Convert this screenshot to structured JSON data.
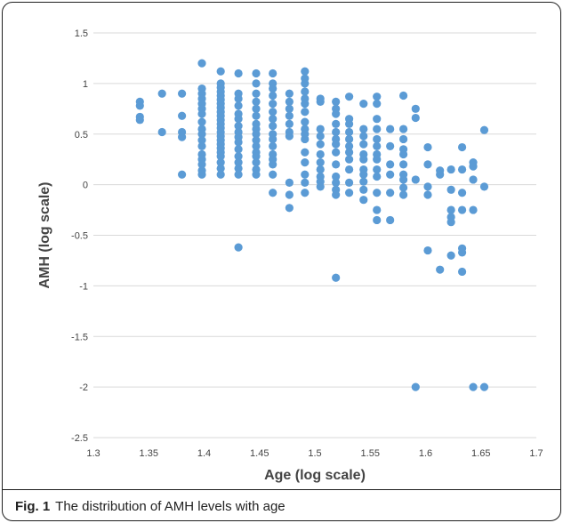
{
  "caption": {
    "label": "Fig. 1",
    "text": "The distribution of AMH levels with age"
  },
  "chart_data": {
    "type": "scatter",
    "title": "",
    "xlabel": "Age (log scale)",
    "ylabel": "AMH (log scale)",
    "xlim": [
      1.3,
      1.7
    ],
    "ylim": [
      -2.5,
      1.5
    ],
    "xticks": [
      "1.3",
      "1.35",
      "1.4",
      "1.45",
      "1.5",
      "1.55",
      "1.6",
      "1.65",
      "1.7"
    ],
    "yticks": [
      "1.5",
      "1",
      "0.5",
      "0",
      "-0.5",
      "-1",
      "-1.5",
      "-2",
      "-2.5"
    ],
    "grid": "horizontal",
    "marker_color": "#5b9bd5",
    "series": [
      {
        "points": [
          [
            1.342,
            0.82
          ],
          [
            1.342,
            0.78
          ],
          [
            1.342,
            0.67
          ],
          [
            1.342,
            0.64
          ],
          [
            1.362,
            0.9
          ],
          [
            1.362,
            0.52
          ],
          [
            1.38,
            0.9
          ],
          [
            1.38,
            0.68
          ],
          [
            1.38,
            0.52
          ],
          [
            1.38,
            0.47
          ],
          [
            1.38,
            0.1
          ],
          [
            1.398,
            1.2
          ],
          [
            1.398,
            0.95
          ],
          [
            1.398,
            0.9
          ],
          [
            1.398,
            0.85
          ],
          [
            1.398,
            0.8
          ],
          [
            1.398,
            0.75
          ],
          [
            1.398,
            0.7
          ],
          [
            1.398,
            0.62
          ],
          [
            1.398,
            0.55
          ],
          [
            1.398,
            0.5
          ],
          [
            1.398,
            0.44
          ],
          [
            1.398,
            0.38
          ],
          [
            1.398,
            0.3
          ],
          [
            1.398,
            0.25
          ],
          [
            1.398,
            0.2
          ],
          [
            1.398,
            0.14
          ],
          [
            1.398,
            0.1
          ],
          [
            1.415,
            1.12
          ],
          [
            1.415,
            1.0
          ],
          [
            1.415,
            0.96
          ],
          [
            1.415,
            0.92
          ],
          [
            1.415,
            0.88
          ],
          [
            1.415,
            0.84
          ],
          [
            1.415,
            0.8
          ],
          [
            1.415,
            0.76
          ],
          [
            1.415,
            0.72
          ],
          [
            1.415,
            0.68
          ],
          [
            1.415,
            0.64
          ],
          [
            1.415,
            0.6
          ],
          [
            1.415,
            0.56
          ],
          [
            1.415,
            0.52
          ],
          [
            1.415,
            0.48
          ],
          [
            1.415,
            0.44
          ],
          [
            1.415,
            0.4
          ],
          [
            1.415,
            0.36
          ],
          [
            1.415,
            0.32
          ],
          [
            1.415,
            0.28
          ],
          [
            1.415,
            0.22
          ],
          [
            1.415,
            0.16
          ],
          [
            1.415,
            0.1
          ],
          [
            1.431,
            1.1
          ],
          [
            1.431,
            0.9
          ],
          [
            1.431,
            0.85
          ],
          [
            1.431,
            0.78
          ],
          [
            1.431,
            0.7
          ],
          [
            1.431,
            0.65
          ],
          [
            1.431,
            0.58
          ],
          [
            1.431,
            0.52
          ],
          [
            1.431,
            0.47
          ],
          [
            1.431,
            0.42
          ],
          [
            1.431,
            0.35
          ],
          [
            1.431,
            0.28
          ],
          [
            1.431,
            0.22
          ],
          [
            1.431,
            0.16
          ],
          [
            1.431,
            0.1
          ],
          [
            1.431,
            -0.62
          ],
          [
            1.447,
            1.1
          ],
          [
            1.447,
            1.0
          ],
          [
            1.447,
            0.9
          ],
          [
            1.447,
            0.82
          ],
          [
            1.447,
            0.75
          ],
          [
            1.447,
            0.68
          ],
          [
            1.447,
            0.6
          ],
          [
            1.447,
            0.55
          ],
          [
            1.447,
            0.5
          ],
          [
            1.447,
            0.44
          ],
          [
            1.447,
            0.38
          ],
          [
            1.447,
            0.32
          ],
          [
            1.447,
            0.28
          ],
          [
            1.447,
            0.22
          ],
          [
            1.447,
            0.15
          ],
          [
            1.447,
            0.1
          ],
          [
            1.462,
            1.1
          ],
          [
            1.462,
            1.0
          ],
          [
            1.462,
            0.95
          ],
          [
            1.462,
            0.88
          ],
          [
            1.462,
            0.8
          ],
          [
            1.462,
            0.72
          ],
          [
            1.462,
            0.65
          ],
          [
            1.462,
            0.58
          ],
          [
            1.462,
            0.5
          ],
          [
            1.462,
            0.45
          ],
          [
            1.462,
            0.38
          ],
          [
            1.462,
            0.3
          ],
          [
            1.462,
            0.25
          ],
          [
            1.462,
            0.2
          ],
          [
            1.462,
            0.1
          ],
          [
            1.462,
            -0.08
          ],
          [
            1.477,
            0.9
          ],
          [
            1.477,
            0.82
          ],
          [
            1.477,
            0.75
          ],
          [
            1.477,
            0.68
          ],
          [
            1.477,
            0.6
          ],
          [
            1.477,
            0.52
          ],
          [
            1.477,
            0.48
          ],
          [
            1.477,
            0.02
          ],
          [
            1.477,
            -0.1
          ],
          [
            1.477,
            -0.23
          ],
          [
            1.491,
            1.12
          ],
          [
            1.491,
            1.05
          ],
          [
            1.491,
            1.0
          ],
          [
            1.491,
            0.92
          ],
          [
            1.491,
            0.85
          ],
          [
            1.491,
            0.8
          ],
          [
            1.491,
            0.72
          ],
          [
            1.491,
            0.62
          ],
          [
            1.491,
            0.55
          ],
          [
            1.491,
            0.5
          ],
          [
            1.491,
            0.45
          ],
          [
            1.491,
            0.32
          ],
          [
            1.491,
            0.22
          ],
          [
            1.491,
            0.1
          ],
          [
            1.491,
            0.02
          ],
          [
            1.491,
            -0.08
          ],
          [
            1.505,
            0.85
          ],
          [
            1.505,
            0.82
          ],
          [
            1.505,
            0.55
          ],
          [
            1.505,
            0.48
          ],
          [
            1.505,
            0.4
          ],
          [
            1.505,
            0.3
          ],
          [
            1.505,
            0.22
          ],
          [
            1.505,
            0.15
          ],
          [
            1.505,
            0.08
          ],
          [
            1.505,
            0.03
          ],
          [
            1.505,
            -0.02
          ],
          [
            1.519,
            0.82
          ],
          [
            1.519,
            0.75
          ],
          [
            1.519,
            0.7
          ],
          [
            1.519,
            0.6
          ],
          [
            1.519,
            0.52
          ],
          [
            1.519,
            0.45
          ],
          [
            1.519,
            0.4
          ],
          [
            1.519,
            0.32
          ],
          [
            1.519,
            0.2
          ],
          [
            1.519,
            0.08
          ],
          [
            1.519,
            0.02
          ],
          [
            1.519,
            -0.05
          ],
          [
            1.519,
            -0.1
          ],
          [
            1.519,
            -0.92
          ],
          [
            1.531,
            0.87
          ],
          [
            1.531,
            0.65
          ],
          [
            1.531,
            0.6
          ],
          [
            1.531,
            0.52
          ],
          [
            1.531,
            0.45
          ],
          [
            1.531,
            0.38
          ],
          [
            1.531,
            0.32
          ],
          [
            1.531,
            0.25
          ],
          [
            1.531,
            0.15
          ],
          [
            1.531,
            0.02
          ],
          [
            1.531,
            -0.08
          ],
          [
            1.544,
            0.8
          ],
          [
            1.544,
            0.55
          ],
          [
            1.544,
            0.48
          ],
          [
            1.544,
            0.4
          ],
          [
            1.544,
            0.3
          ],
          [
            1.544,
            0.25
          ],
          [
            1.544,
            0.15
          ],
          [
            1.544,
            0.1
          ],
          [
            1.544,
            0.03
          ],
          [
            1.544,
            -0.05
          ],
          [
            1.544,
            -0.15
          ],
          [
            1.556,
            0.87
          ],
          [
            1.556,
            0.8
          ],
          [
            1.556,
            0.65
          ],
          [
            1.556,
            0.55
          ],
          [
            1.556,
            0.45
          ],
          [
            1.556,
            0.38
          ],
          [
            1.556,
            0.3
          ],
          [
            1.556,
            0.25
          ],
          [
            1.556,
            0.15
          ],
          [
            1.556,
            0.08
          ],
          [
            1.556,
            -0.08
          ],
          [
            1.556,
            -0.25
          ],
          [
            1.556,
            -0.35
          ],
          [
            1.568,
            0.55
          ],
          [
            1.568,
            0.38
          ],
          [
            1.568,
            0.2
          ],
          [
            1.568,
            0.1
          ],
          [
            1.568,
            -0.08
          ],
          [
            1.568,
            -0.35
          ],
          [
            1.58,
            0.88
          ],
          [
            1.58,
            0.55
          ],
          [
            1.58,
            0.45
          ],
          [
            1.58,
            0.35
          ],
          [
            1.58,
            0.3
          ],
          [
            1.58,
            0.2
          ],
          [
            1.58,
            0.1
          ],
          [
            1.58,
            0.05
          ],
          [
            1.58,
            -0.03
          ],
          [
            1.58,
            -0.1
          ],
          [
            1.591,
            0.75
          ],
          [
            1.591,
            0.66
          ],
          [
            1.591,
            0.05
          ],
          [
            1.591,
            -2.0
          ],
          [
            1.602,
            0.37
          ],
          [
            1.602,
            0.2
          ],
          [
            1.602,
            -0.02
          ],
          [
            1.602,
            -0.1
          ],
          [
            1.602,
            -0.65
          ],
          [
            1.613,
            0.14
          ],
          [
            1.613,
            0.1
          ],
          [
            1.613,
            -0.84
          ],
          [
            1.623,
            0.15
          ],
          [
            1.623,
            -0.05
          ],
          [
            1.623,
            -0.25
          ],
          [
            1.623,
            -0.32
          ],
          [
            1.623,
            -0.37
          ],
          [
            1.623,
            -0.7
          ],
          [
            1.633,
            0.37
          ],
          [
            1.633,
            0.15
          ],
          [
            1.633,
            -0.08
          ],
          [
            1.633,
            -0.25
          ],
          [
            1.633,
            -0.63
          ],
          [
            1.633,
            -0.67
          ],
          [
            1.633,
            -0.86
          ],
          [
            1.643,
            0.22
          ],
          [
            1.643,
            0.18
          ],
          [
            1.643,
            0.05
          ],
          [
            1.643,
            -0.25
          ],
          [
            1.643,
            -2.0
          ],
          [
            1.653,
            0.54
          ],
          [
            1.653,
            -0.02
          ],
          [
            1.653,
            -2.0
          ]
        ]
      }
    ]
  }
}
